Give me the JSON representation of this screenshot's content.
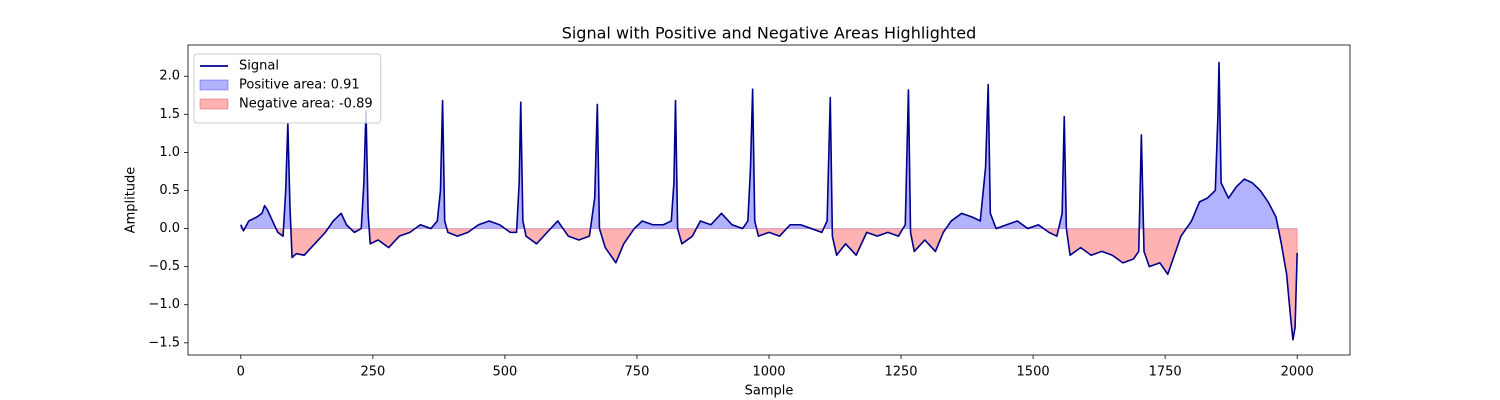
{
  "chart_data": {
    "type": "line",
    "title": "Signal with Positive and Negative Areas Highlighted",
    "x_label": "Sample",
    "y_label": "Amplitude",
    "x": [
      0,
      5,
      15,
      30,
      40,
      45,
      50,
      60,
      70,
      80,
      85,
      89,
      93,
      97,
      105,
      120,
      140,
      160,
      175,
      190,
      200,
      215,
      228,
      233,
      237,
      241,
      245,
      260,
      280,
      300,
      320,
      340,
      360,
      372,
      378,
      382,
      386,
      392,
      410,
      430,
      450,
      470,
      490,
      510,
      522,
      527,
      530,
      534,
      540,
      560,
      580,
      600,
      620,
      640,
      660,
      670,
      675,
      679,
      690,
      710,
      725,
      745,
      760,
      780,
      800,
      815,
      820,
      823,
      827,
      835,
      855,
      870,
      890,
      910,
      930,
      950,
      960,
      965,
      969,
      973,
      980,
      1000,
      1020,
      1040,
      1060,
      1080,
      1100,
      1110,
      1116,
      1120,
      1128,
      1145,
      1165,
      1185,
      1205,
      1225,
      1245,
      1258,
      1264,
      1268,
      1275,
      1295,
      1315,
      1330,
      1345,
      1365,
      1385,
      1400,
      1410,
      1415,
      1419,
      1430,
      1450,
      1470,
      1490,
      1510,
      1530,
      1545,
      1555,
      1559,
      1563,
      1570,
      1590,
      1610,
      1630,
      1650,
      1670,
      1690,
      1700,
      1705,
      1710,
      1720,
      1740,
      1755,
      1770,
      1780,
      1790,
      1800,
      1815,
      1830,
      1845,
      1850,
      1852,
      1856,
      1870,
      1885,
      1900,
      1915,
      1930,
      1945,
      1960,
      1970,
      1980,
      1988,
      1992,
      1996,
      2000
    ],
    "series": [
      {
        "name": "Signal",
        "color": "#00008b",
        "values": [
          0.05,
          -0.03,
          0.1,
          0.15,
          0.2,
          0.3,
          0.25,
          0.1,
          -0.05,
          -0.1,
          0.5,
          1.38,
          0.3,
          -0.38,
          -0.33,
          -0.35,
          -0.2,
          -0.05,
          0.1,
          0.2,
          0.05,
          -0.05,
          0,
          0.6,
          1.55,
          0.2,
          -0.2,
          -0.15,
          -0.25,
          -0.1,
          -0.05,
          0.05,
          0,
          0.1,
          0.5,
          1.68,
          0.1,
          -0.05,
          -0.1,
          -0.05,
          0.05,
          0.1,
          0.05,
          -0.05,
          -0.05,
          0.6,
          1.66,
          0.1,
          -0.1,
          -0.2,
          -0.05,
          0.1,
          -0.1,
          -0.15,
          -0.1,
          0.4,
          1.63,
          0,
          -0.25,
          -0.45,
          -0.2,
          0,
          0.1,
          0.05,
          0.05,
          0.1,
          0.6,
          1.68,
          0,
          -0.2,
          -0.1,
          0.1,
          0.05,
          0.2,
          0.05,
          0,
          0.1,
          0.8,
          1.83,
          0.1,
          -0.1,
          -0.05,
          -0.1,
          0.05,
          0.05,
          0,
          -0.05,
          0.1,
          1.72,
          -0.1,
          -0.35,
          -0.2,
          -0.35,
          -0.05,
          -0.1,
          -0.05,
          -0.1,
          0.05,
          1.82,
          -0.05,
          -0.3,
          -0.15,
          -0.3,
          -0.05,
          0.1,
          0.2,
          0.15,
          0.1,
          0.8,
          1.89,
          0.2,
          0,
          0.05,
          0.1,
          0,
          0.05,
          -0.05,
          -0.1,
          0.2,
          1.47,
          0,
          -0.35,
          -0.25,
          -0.35,
          -0.3,
          -0.35,
          -0.45,
          -0.4,
          -0.3,
          1.23,
          -0.3,
          -0.5,
          -0.45,
          -0.6,
          -0.3,
          -0.1,
          0,
          0.1,
          0.35,
          0.4,
          0.5,
          1.5,
          2.18,
          0.6,
          0.4,
          0.55,
          0.65,
          0.6,
          0.5,
          0.35,
          0.15,
          -0.2,
          -0.6,
          -1.2,
          -1.46,
          -1.3,
          -0.32
        ]
      }
    ],
    "fills": [
      {
        "name": "Positive area: 0.91",
        "color": "#0000ff",
        "side": "positive"
      },
      {
        "name": "Negative area: -0.89",
        "color": "#ff0000",
        "side": "negative"
      }
    ],
    "fill_alpha": 0.3,
    "xlim": [
      -100,
      2100
    ],
    "ylim": [
      -1.66,
      2.41
    ],
    "xticks": [
      0,
      250,
      500,
      750,
      1000,
      1250,
      1500,
      1750,
      2000
    ],
    "yticks": [
      {
        "value": -1.5,
        "label": "−1.5"
      },
      {
        "value": -1.0,
        "label": "−1.0"
      },
      {
        "value": -0.5,
        "label": "−0.5"
      },
      {
        "value": 0.0,
        "label": "0.0"
      },
      0.5,
      {
        "value": 1.0,
        "label": "1.0"
      },
      1.5,
      {
        "value": 2.0,
        "label": "2.0"
      }
    ],
    "grid": false,
    "legend": "upper left"
  }
}
